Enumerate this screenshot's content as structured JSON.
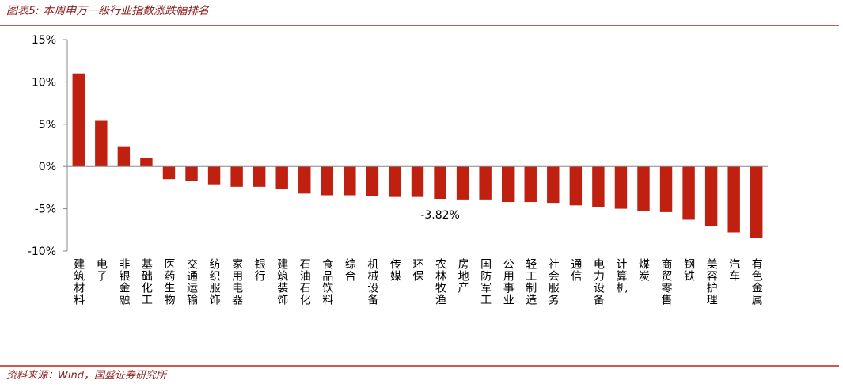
{
  "chart_data": {
    "type": "bar",
    "title": "图表5:  本周申万一级行业指数涨跌幅排名",
    "source": "资料来源：Wind，国盛证券研究所",
    "categories": [
      "建筑材料",
      "电子",
      "非银金融",
      "基础化工",
      "医药生物",
      "交通运输",
      "纺织服饰",
      "家用电器",
      "银行",
      "建筑装饰",
      "石油石化",
      "食品饮料",
      "综合",
      "机械设备",
      "传媒",
      "环保",
      "农林牧渔",
      "房地产",
      "国防军工",
      "公用事业",
      "轻工制造",
      "社会服务",
      "通信",
      "电力设备",
      "计算机",
      "煤炭",
      "商贸零售",
      "钢铁",
      "美容护理",
      "汽车",
      "有色金属"
    ],
    "values": [
      11.0,
      5.4,
      2.3,
      1.0,
      -1.5,
      -1.7,
      -2.2,
      -2.4,
      -2.4,
      -2.7,
      -3.2,
      -3.4,
      -3.4,
      -3.5,
      -3.6,
      -3.6,
      -3.82,
      -3.9,
      -3.9,
      -4.2,
      -4.2,
      -4.3,
      -4.6,
      -4.8,
      -5.0,
      -5.3,
      -5.4,
      -6.3,
      -7.1,
      -7.8,
      -8.5
    ],
    "value_labels": [
      null,
      null,
      null,
      null,
      null,
      null,
      null,
      null,
      null,
      null,
      null,
      null,
      null,
      null,
      null,
      null,
      "-3.82%",
      null,
      null,
      null,
      null,
      null,
      null,
      null,
      null,
      null,
      null,
      null,
      null,
      null,
      null
    ],
    "color": "#c0200f",
    "ylim": [
      -10,
      15
    ],
    "yticks": [
      {
        "value": -10,
        "label": "-10%"
      },
      {
        "value": -5,
        "label": "-5%"
      },
      {
        "value": 0,
        "label": "0%"
      },
      {
        "value": 5,
        "label": "5%"
      },
      {
        "value": 10,
        "label": "10%"
      },
      {
        "value": 15,
        "label": "15%"
      }
    ],
    "grid": false
  }
}
